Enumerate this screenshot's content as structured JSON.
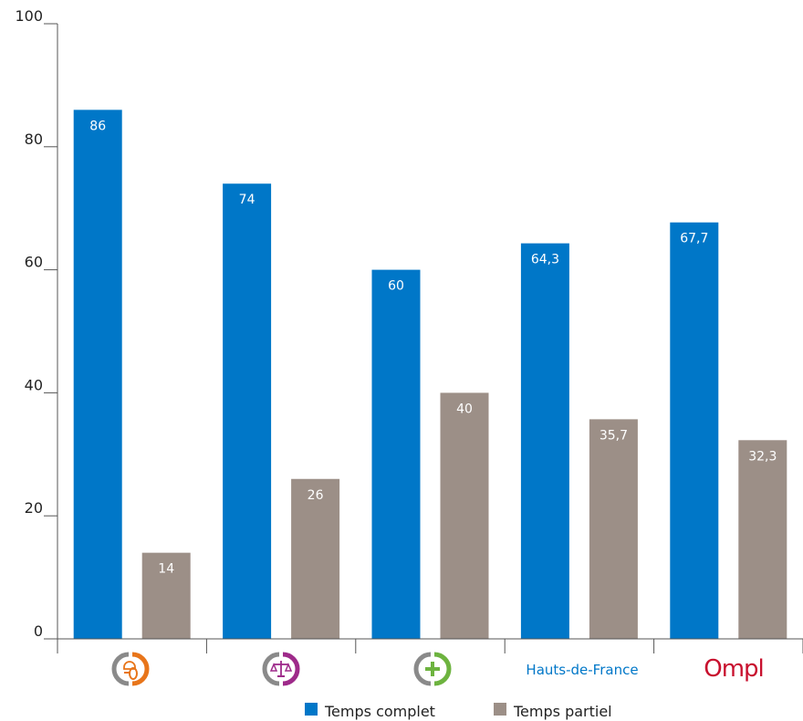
{
  "chart_data": {
    "type": "bar",
    "categories": [
      "",
      "",
      "",
      "Hauts-de-France",
      ""
    ],
    "category_icons": [
      "cadre-de-vie-technique-icon",
      "juridique-icon",
      "sante-icon",
      "",
      "ompl-logo-icon"
    ],
    "logo_text": "Ompl",
    "series": [
      {
        "name": "Temps complet",
        "color": "#0077c8",
        "values": [
          86,
          74,
          60,
          64.3,
          67.7
        ],
        "labels": [
          "86",
          "74",
          "60",
          "64,3",
          "67,7"
        ]
      },
      {
        "name": "Temps partiel",
        "color": "#9c8f87",
        "values": [
          14,
          26,
          40,
          35.7,
          32.3
        ],
        "labels": [
          "14",
          "26",
          "40",
          "35,7",
          "32,3"
        ]
      }
    ],
    "ylim": [
      0,
      100
    ],
    "yticks": [
      0,
      20,
      40,
      60,
      80,
      100
    ],
    "ytick_labels": [
      "0",
      "20",
      "40",
      "60",
      "80",
      "100"
    ],
    "colors": {
      "hauts_de_france": "#0077c8",
      "technique": "#e8751a",
      "juridique": "#9e2a8a",
      "sante": "#6db33f",
      "ompl": "#c8102e",
      "ring": "#8a8a8a"
    },
    "legend": "bottom-center",
    "grid": false
  }
}
